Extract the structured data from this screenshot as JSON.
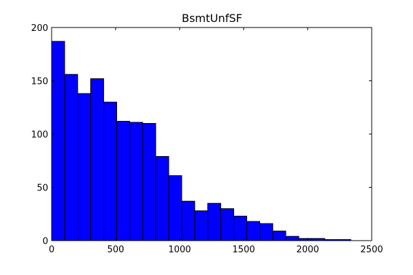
{
  "chart_data": {
    "type": "bar",
    "title": "BsmtUnfSF",
    "xlabel": "",
    "ylabel": "",
    "xlim": [
      0,
      2500
    ],
    "ylim": [
      0,
      200
    ],
    "bar_color": "#0000ff",
    "edge_color": "#000000",
    "grid": false,
    "legend": "none",
    "bin_width": 101.6,
    "bin_starts": [
      0,
      101.6,
      203.2,
      304.8,
      406.4,
      508.0,
      609.6,
      711.2,
      812.8,
      914.4,
      1016.0,
      1117.6,
      1219.2,
      1320.8,
      1422.4,
      1524.0,
      1625.6,
      1727.2,
      1828.8,
      1930.4,
      2032.0,
      2133.6,
      2235.2
    ],
    "values": [
      187,
      156,
      138,
      152,
      130,
      112,
      111,
      110,
      79,
      61,
      37,
      28,
      35,
      30,
      23,
      18,
      16,
      9,
      4,
      2,
      2,
      1,
      1
    ],
    "x_ticks": [
      0,
      500,
      1000,
      1500,
      2000,
      2500
    ],
    "y_ticks": [
      0,
      50,
      100,
      150,
      200
    ],
    "x_tick_labels": [
      "0",
      "500",
      "1000",
      "1500",
      "2000",
      "2500"
    ],
    "y_tick_labels": [
      "0",
      "50",
      "100",
      "150",
      "200"
    ]
  }
}
